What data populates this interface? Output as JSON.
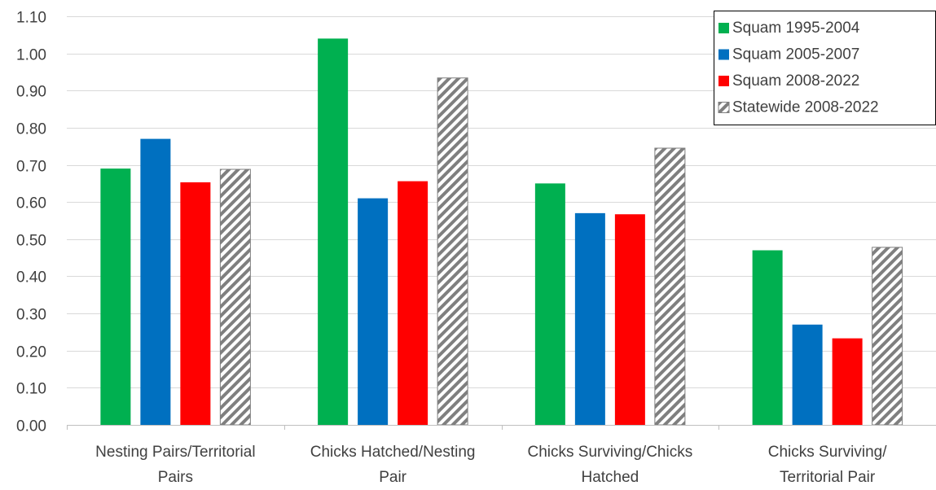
{
  "chart_data": {
    "type": "bar",
    "title": "",
    "xlabel": "",
    "ylabel": "",
    "ylim": [
      0,
      1.1
    ],
    "yticks": [
      "0.00",
      "0.10",
      "0.20",
      "0.30",
      "0.40",
      "0.50",
      "0.60",
      "0.70",
      "0.80",
      "0.90",
      "1.00",
      "1.10"
    ],
    "grid": true,
    "legend_position": "top-right",
    "categories": [
      [
        "Nesting Pairs/Territorial",
        "Pairs"
      ],
      [
        "Chicks Hatched/Nesting",
        "Pair"
      ],
      [
        "Chicks Surviving/Chicks",
        "Hatched"
      ],
      [
        "Chicks Surviving/",
        "Territorial Pair"
      ]
    ],
    "series": [
      {
        "name": "Squam 1995-2004",
        "color": "#00b050",
        "pattern": "solid",
        "values": [
          0.69,
          1.04,
          0.65,
          0.47
        ]
      },
      {
        "name": "Squam 2005-2007",
        "color": "#0070c0",
        "pattern": "solid",
        "values": [
          0.77,
          0.61,
          0.57,
          0.27
        ]
      },
      {
        "name": "Squam 2008-2022",
        "color": "#ff0000",
        "pattern": "solid",
        "values": [
          0.653,
          0.656,
          0.567,
          0.233
        ]
      },
      {
        "name": "Statewide 2008-2022",
        "color": "#808080",
        "pattern": "diagonal-hatch",
        "values": [
          0.688,
          0.934,
          0.745,
          0.478
        ]
      }
    ]
  }
}
